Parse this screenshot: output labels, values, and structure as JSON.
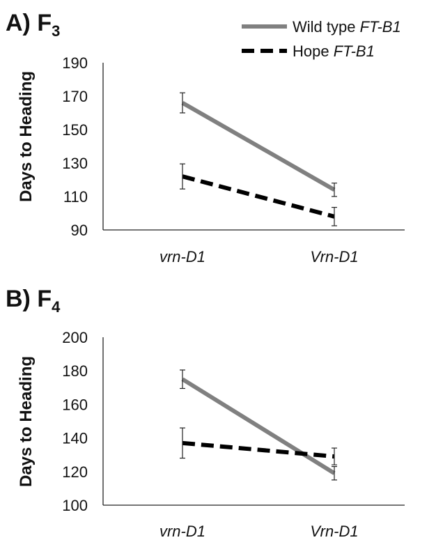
{
  "legend": {
    "wild_prefix": "Wild type ",
    "wild_gene": "FT-B1",
    "hope_prefix": "Hope ",
    "hope_gene": "FT-B1"
  },
  "colors": {
    "wild": "#808080",
    "hope": "#000000"
  },
  "chart_data": [
    {
      "type": "line",
      "panel_label": "A) F",
      "panel_sub": "3",
      "categories": [
        "vrn-D1",
        "Vrn-D1"
      ],
      "ylabel": "Days to Heading",
      "ylim": [
        90,
        190
      ],
      "yticks": [
        90,
        110,
        130,
        150,
        170,
        190
      ],
      "series": [
        {
          "name": "Wild type FT-B1",
          "values": [
            166,
            114
          ],
          "err": [
            6,
            4
          ]
        },
        {
          "name": "Hope FT-B1",
          "values": [
            122,
            98
          ],
          "err": [
            7.5,
            5.5
          ]
        }
      ]
    },
    {
      "type": "line",
      "panel_label": "B) F",
      "panel_sub": "4",
      "categories": [
        "vrn-D1",
        "Vrn-D1"
      ],
      "ylabel": "Days to Heading",
      "ylim": [
        100,
        200
      ],
      "yticks": [
        100,
        120,
        140,
        160,
        180,
        200
      ],
      "series": [
        {
          "name": "Wild type FT-B1",
          "values": [
            175,
            119
          ],
          "err": [
            5.5,
            4
          ]
        },
        {
          "name": "Hope FT-B1",
          "values": [
            137,
            129
          ],
          "err": [
            9,
            5
          ]
        }
      ]
    }
  ]
}
